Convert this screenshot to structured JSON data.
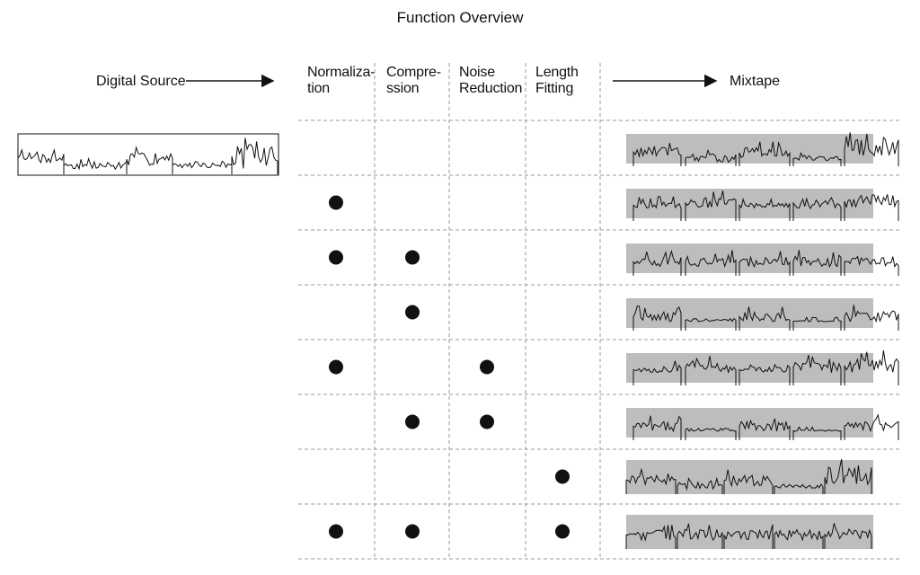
{
  "title": "Function Overview",
  "source_label": "Digital Source",
  "output_label": "Mixtape",
  "columns": [
    "Normaliza-\ntion",
    "Compre-\nssion",
    "Noise\nReduction",
    "Length\nFitting"
  ],
  "rows": [
    [
      false,
      false,
      false,
      false
    ],
    [
      true,
      false,
      false,
      false
    ],
    [
      true,
      true,
      false,
      false
    ],
    [
      false,
      true,
      false,
      false
    ],
    [
      true,
      false,
      true,
      false
    ],
    [
      false,
      true,
      true,
      false
    ],
    [
      false,
      false,
      false,
      true
    ],
    [
      true,
      true,
      false,
      true
    ]
  ]
}
